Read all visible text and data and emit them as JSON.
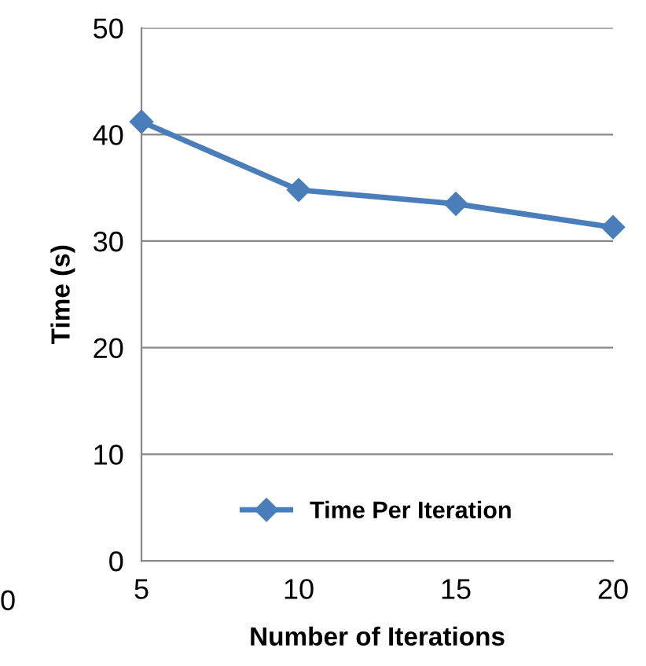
{
  "chart_data": {
    "type": "line",
    "xlabel": "Number of Iterations",
    "ylabel": "Time (s)",
    "x": [
      5,
      10,
      15,
      20
    ],
    "series": [
      {
        "name": "Time Per Iteration",
        "color": "#4a7ebb",
        "values": [
          41.2,
          34.8,
          33.5,
          31.3
        ]
      }
    ],
    "xlim": [
      5,
      20
    ],
    "xticks": [
      5,
      10,
      15,
      20
    ],
    "ylim": [
      0,
      50
    ],
    "yticks": [
      0,
      10,
      20,
      30,
      40,
      50
    ],
    "grid": "y",
    "legend": "bottom",
    "marker": "diamond",
    "line_style": "solid",
    "annotations": [
      "0"
    ]
  }
}
